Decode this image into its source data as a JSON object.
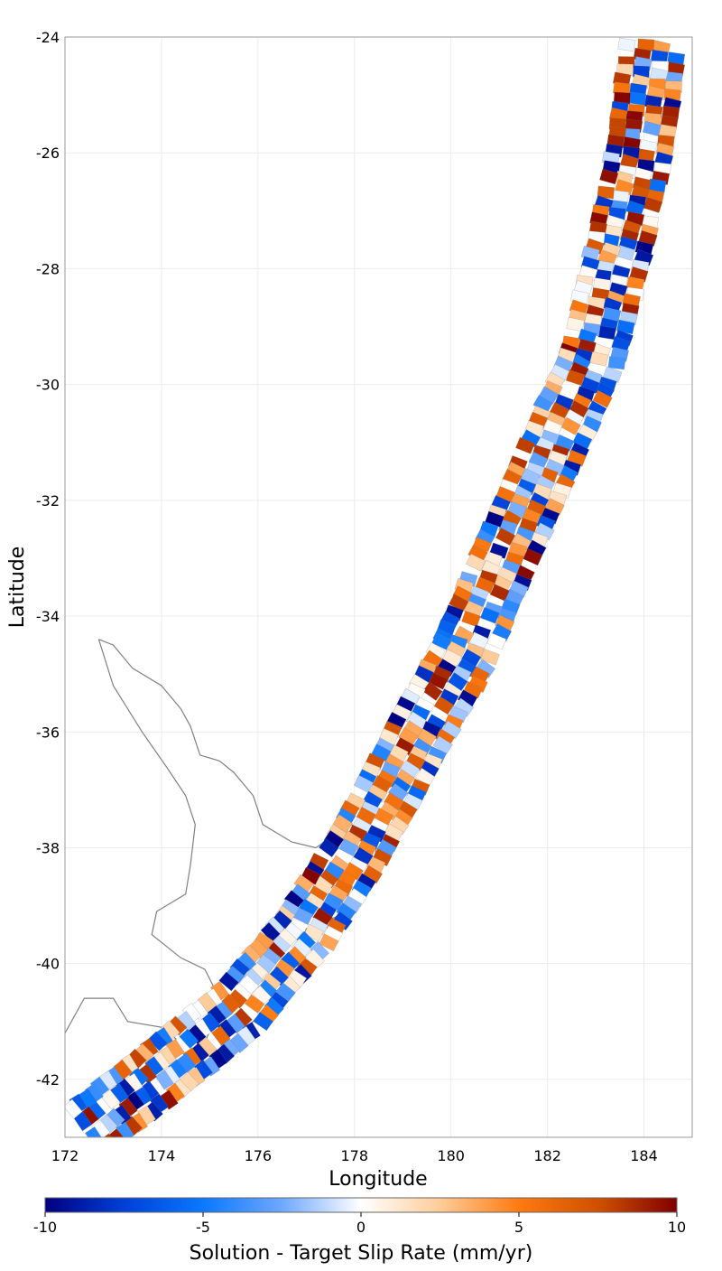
{
  "chart_data": {
    "type": "heatmap",
    "subtype": "fault-patch map",
    "xlabel": "Longitude",
    "ylabel": "Latitude",
    "xlim": [
      172,
      185
    ],
    "ylim": [
      -43,
      -24
    ],
    "xticks": [
      172,
      174,
      176,
      178,
      180,
      182,
      184
    ],
    "yticks": [
      -24,
      -26,
      -28,
      -30,
      -32,
      -34,
      -36,
      -38,
      -40,
      -42
    ],
    "grid": true,
    "colorbar": {
      "title": "Solution - Target Slip Rate (mm/yr)",
      "range": [
        -10,
        10
      ],
      "ticks": [
        -10,
        -5,
        0,
        5,
        10
      ],
      "colors": [
        "#000080",
        "#0040d8",
        "#0a78ff",
        "#6fa8ff",
        "#ffffff",
        "#ffcc99",
        "#ff7a10",
        "#d05000",
        "#800000"
      ],
      "placement": "bottom"
    },
    "fault_trace": {
      "description": "Hikurangi-Kermadec subduction interface, rectangular sub-sections",
      "center_line": [
        [
          184.2,
          -24.1
        ],
        [
          183.9,
          -26.0
        ],
        [
          183.5,
          -27.6
        ],
        [
          182.9,
          -29.6
        ],
        [
          181.9,
          -31.5
        ],
        [
          181.0,
          -33.2
        ],
        [
          180.3,
          -34.6
        ],
        [
          179.5,
          -35.8
        ],
        [
          178.8,
          -36.9
        ],
        [
          178.0,
          -38.1
        ],
        [
          177.0,
          -39.4
        ],
        [
          175.6,
          -40.8
        ],
        [
          173.8,
          -42.0
        ],
        [
          172.4,
          -42.9
        ]
      ],
      "approx_width_deg": 1.4,
      "rows": 140,
      "columns": 4
    },
    "coastline": {
      "color": "#808080",
      "region": "North Island, New Zealand and north tip of South Island"
    }
  }
}
